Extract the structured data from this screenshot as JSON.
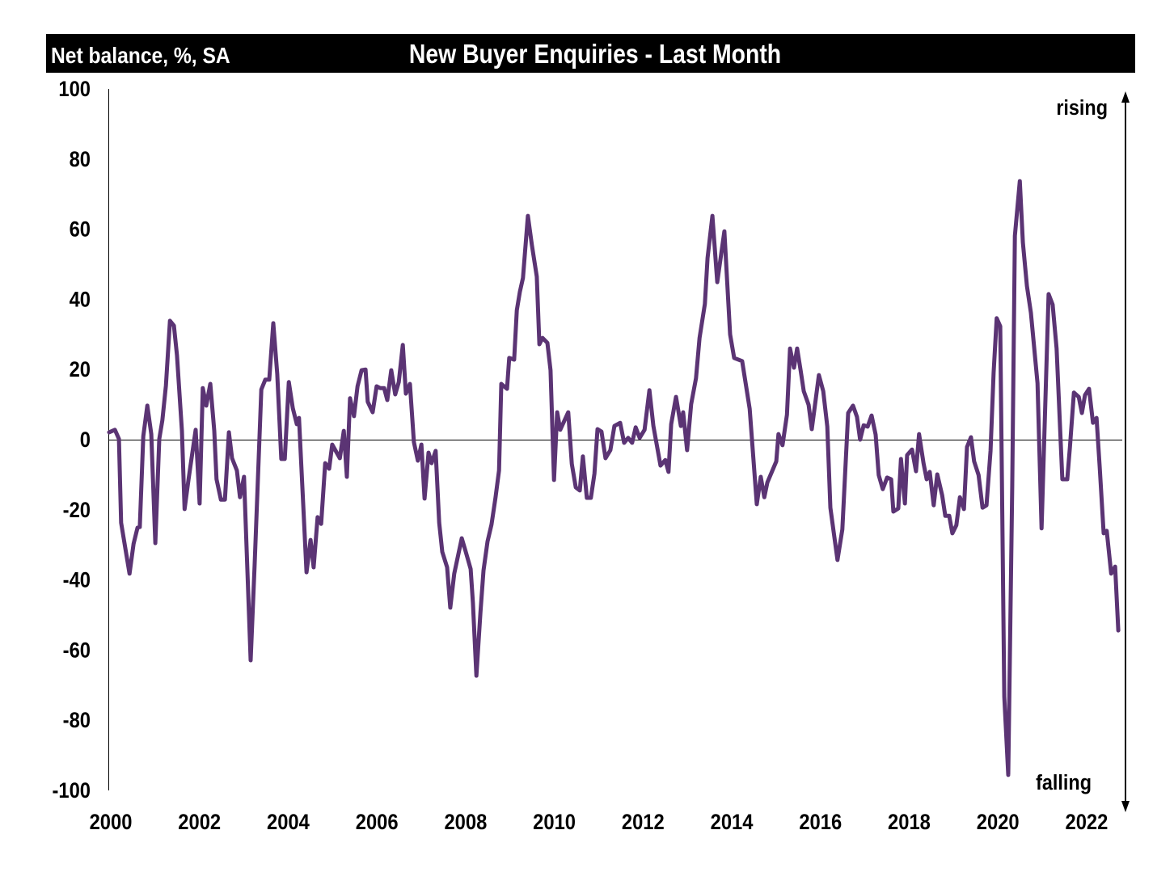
{
  "header": {
    "units_label": "Net balance, %, SA",
    "title": "New Buyer Enquiries - Last Month"
  },
  "annotations": {
    "top": "rising",
    "bottom": "falling"
  },
  "colors": {
    "line": "#5B3474",
    "title_bg": "#000000"
  },
  "chart_data": {
    "type": "line",
    "title": "New Buyer Enquiries - Last Month",
    "ylabel": "Net balance, %, SA",
    "xlabel": "",
    "xlim": [
      2000,
      2022.8
    ],
    "ylim": [
      -100,
      100
    ],
    "yticks": [
      100,
      80,
      60,
      40,
      20,
      0,
      -20,
      -40,
      -60,
      -80,
      -100
    ],
    "ytick_labels": [
      "100",
      "80",
      "60",
      "40",
      "20",
      "0",
      "-20",
      "-40",
      "-60",
      "-80",
      "-100"
    ],
    "xticks": [
      2000,
      2002,
      2004,
      2006,
      2008,
      2010,
      2012,
      2014,
      2016,
      2018,
      2020,
      2022
    ],
    "xtick_labels": [
      "2000",
      "2002",
      "2004",
      "2006",
      "2008",
      "2010",
      "2012",
      "2014",
      "2016",
      "2018",
      "2020",
      "2022"
    ],
    "grid": false,
    "series": [
      {
        "name": "New Buyer Enquiries",
        "x": [
          2000.0,
          2000.13,
          2000.22,
          2000.27,
          2000.46,
          2000.55,
          2000.64,
          2000.69,
          2000.77,
          2000.86,
          2000.95,
          2001.04,
          2001.13,
          2001.2,
          2001.28,
          2001.37,
          2001.46,
          2001.53,
          2001.64,
          2001.7,
          2001.79,
          2001.95,
          2002.04,
          2002.11,
          2002.19,
          2002.28,
          2002.37,
          2002.42,
          2002.52,
          2002.61,
          2002.7,
          2002.77,
          2002.88,
          2002.95,
          2003.04,
          2003.19,
          2003.28,
          2003.43,
          2003.52,
          2003.61,
          2003.7,
          2003.79,
          2003.88,
          2003.96,
          2004.05,
          2004.14,
          2004.23,
          2004.28,
          2004.45,
          2004.54,
          2004.61,
          2004.7,
          2004.78,
          2004.87,
          2004.96,
          2005.03,
          2005.2,
          2005.29,
          2005.36,
          2005.43,
          2005.52,
          2005.6,
          2005.69,
          2005.78,
          2005.83,
          2005.94,
          2006.03,
          2006.11,
          2006.2,
          2006.27,
          2006.36,
          2006.45,
          2006.53,
          2006.62,
          2006.69,
          2006.78,
          2006.87,
          2006.96,
          2007.04,
          2007.11,
          2007.2,
          2007.27,
          2007.36,
          2007.44,
          2007.51,
          2007.62,
          2007.69,
          2007.78,
          2007.95,
          2008.04,
          2008.15,
          2008.2,
          2008.28,
          2008.37,
          2008.44,
          2008.53,
          2008.62,
          2008.71,
          2008.79,
          2008.84,
          2008.97,
          2009.02,
          2009.13,
          2009.19,
          2009.26,
          2009.33,
          2009.44,
          2009.53,
          2009.64,
          2009.7,
          2009.77,
          2009.88,
          2009.95,
          2010.03,
          2010.1,
          2010.17,
          2010.35,
          2010.43,
          2010.52,
          2010.61,
          2010.68,
          2010.77,
          2010.86,
          2010.94,
          2011.01,
          2011.1,
          2011.19,
          2011.3,
          2011.39,
          2011.52,
          2011.61,
          2011.7,
          2011.79,
          2011.87,
          2011.96,
          2012.07,
          2012.18,
          2012.27,
          2012.43,
          2012.54,
          2012.61,
          2012.67,
          2012.78,
          2012.89,
          2012.94,
          2013.03,
          2013.12,
          2013.23,
          2013.31,
          2013.43,
          2013.49,
          2013.6,
          2013.71,
          2013.87,
          2014.0,
          2014.09,
          2014.27,
          2014.44,
          2014.6,
          2014.69,
          2014.77,
          2014.84,
          2015.04,
          2015.09,
          2015.18,
          2015.28,
          2015.35,
          2015.44,
          2015.51,
          2015.59,
          2015.66,
          2015.77,
          2015.84,
          2015.93,
          2016.0,
          2016.1,
          2016.19,
          2016.26,
          2016.42,
          2016.53,
          2016.66,
          2016.77,
          2016.86,
          2016.93,
          2017.01,
          2017.1,
          2017.19,
          2017.28,
          2017.35,
          2017.44,
          2017.54,
          2017.63,
          2017.68,
          2017.79,
          2017.85,
          2017.94,
          2017.99,
          2018.1,
          2018.19,
          2018.26,
          2018.36,
          2018.43,
          2018.5,
          2018.59,
          2018.67,
          2018.78,
          2018.85,
          2018.94,
          2019.01,
          2019.1,
          2019.18,
          2019.27,
          2019.34,
          2019.43,
          2019.5,
          2019.6,
          2019.69,
          2019.78,
          2019.87,
          2019.94,
          2020.01,
          2020.09,
          2020.18,
          2020.27,
          2020.36,
          2020.42,
          2020.53,
          2020.6,
          2020.69,
          2020.78,
          2020.93,
          2021.02,
          2021.18,
          2021.27,
          2021.36,
          2021.49,
          2021.6,
          2021.66,
          2021.75,
          2021.86,
          2021.93,
          2022.0,
          2022.09,
          2022.18,
          2022.26,
          2022.33,
          2022.42,
          2022.49,
          2022.59,
          2022.68,
          2022.75
        ],
        "y": [
          2.1,
          2.8,
          0.2,
          -23.7,
          -38.2,
          -29.7,
          -25.1,
          -24.9,
          0.9,
          9.7,
          1.6,
          -29.5,
          0.2,
          5.5,
          15.4,
          33.9,
          32.5,
          24.0,
          2.5,
          -19.8,
          -11.3,
          2.8,
          -18.2,
          14.7,
          9.7,
          15.9,
          2.5,
          -11.3,
          -17.1,
          -17.1,
          2.1,
          -5.3,
          -8.8,
          -16.4,
          -10.6,
          -62.9,
          -35.9,
          14.3,
          17.1,
          17.1,
          33.2,
          18.7,
          -5.5,
          -5.5,
          16.4,
          9.0,
          4.4,
          6.2,
          -37.8,
          -28.6,
          -36.4,
          -22.1,
          -24.0,
          -6.7,
          -8.3,
          -1.4,
          -5.3,
          2.5,
          -10.6,
          11.8,
          6.7,
          15.2,
          19.8,
          20.0,
          10.8,
          7.8,
          15.2,
          14.7,
          14.7,
          11.3,
          19.8,
          12.9,
          16.4,
          27.0,
          13.1,
          15.9,
          -0.7,
          -6.0,
          -1.4,
          -16.8,
          -3.7,
          -6.7,
          -3.2,
          -23.7,
          -32.0,
          -36.4,
          -47.9,
          -38.2,
          -28.1,
          -32.0,
          -36.9,
          -46.5,
          -67.3,
          -49.3,
          -37.3,
          -29.0,
          -24.2,
          -16.6,
          -8.8,
          15.9,
          14.5,
          23.3,
          22.8,
          36.9,
          42.2,
          46.1,
          63.8,
          55.5,
          46.5,
          27.2,
          29.0,
          27.6,
          19.8,
          -11.5,
          7.8,
          2.8,
          7.8,
          -6.9,
          -13.6,
          -14.5,
          -4.8,
          -16.6,
          -16.6,
          -9.7,
          3.0,
          2.3,
          -5.3,
          -3.0,
          3.9,
          4.8,
          -0.9,
          0.5,
          -0.9,
          3.5,
          0.5,
          2.8,
          14.1,
          3.9,
          -7.4,
          -5.8,
          -9.2,
          4.4,
          12.2,
          3.9,
          7.8,
          -3.0,
          10.1,
          17.5,
          29.0,
          38.7,
          51.8,
          63.8,
          44.9,
          59.4,
          30.0,
          23.3,
          22.4,
          8.8,
          -18.4,
          -10.6,
          -16.4,
          -12.2,
          -6.2,
          1.6,
          -1.6,
          7.1,
          26.0,
          20.5,
          26.0,
          19.6,
          13.8,
          9.9,
          3.0,
          11.5,
          18.4,
          13.8,
          3.7,
          -19.4,
          -34.3,
          -25.6,
          7.6,
          9.7,
          6.5,
          0.0,
          4.1,
          3.7,
          6.9,
          1.4,
          -10.1,
          -14.1,
          -10.8,
          -11.3,
          -20.5,
          -19.6,
          -5.5,
          -18.2,
          -4.4,
          -2.8,
          -9.0,
          1.6,
          -6.7,
          -11.3,
          -9.2,
          -18.7,
          -9.9,
          -15.9,
          -21.7,
          -21.7,
          -26.7,
          -24.4,
          -16.4,
          -19.8,
          -2.1,
          0.7,
          -6.2,
          -10.1,
          -19.4,
          -18.7,
          -3.2,
          19.1,
          34.6,
          32.3,
          -73.3,
          -95.6,
          -13.6,
          58.1,
          73.7,
          56.2,
          43.8,
          36.2,
          16.1,
          -25.3,
          41.5,
          38.5,
          26.0,
          -11.3,
          -11.3,
          -2.1,
          13.4,
          12.2,
          7.6,
          12.7,
          14.5,
          4.8,
          6.2,
          -7.4,
          -26.7,
          -26.0,
          -38.2,
          -36.2,
          -54.4
        ]
      }
    ]
  }
}
